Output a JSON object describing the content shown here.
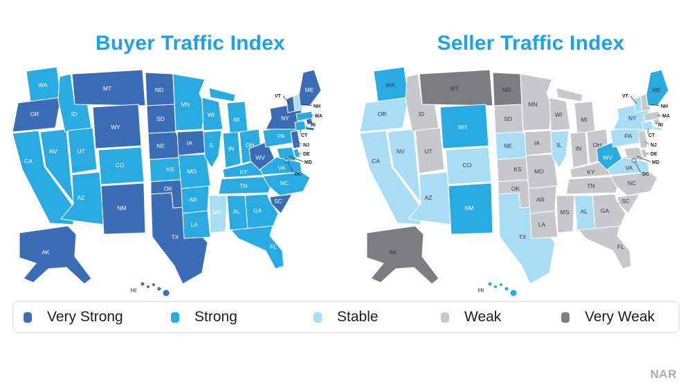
{
  "maps": {
    "buyer": {
      "title": "Buyer Traffic Index"
    },
    "seller": {
      "title": "Seller Traffic Index"
    }
  },
  "title_color": "#1BA3E8",
  "attribution": "NAR",
  "categories": {
    "very-strong": {
      "label": "Very Strong",
      "color": "#3A6DB5"
    },
    "strong": {
      "label": "Strong",
      "color": "#29ABE2"
    },
    "stable": {
      "label": "Stable",
      "color": "#A9DDF6"
    },
    "weak": {
      "label": "Weak",
      "color": "#C7C8CA"
    },
    "very-weak": {
      "label": "Very Weak",
      "color": "#7B7D80"
    }
  },
  "legend": {
    "items": [
      {
        "label": "Very Strong",
        "category": "very-strong"
      },
      {
        "label": "Strong",
        "category": "strong"
      },
      {
        "label": "Stable",
        "category": "stable"
      },
      {
        "label": "Weak",
        "category": "weak"
      },
      {
        "label": "Very Weak",
        "category": "very-weak"
      }
    ]
  },
  "states": [
    {
      "abbr": "AK",
      "buyer": "very-strong",
      "seller": "very-weak"
    },
    {
      "abbr": "AL",
      "buyer": "strong",
      "seller": "stable"
    },
    {
      "abbr": "AR",
      "buyer": "strong",
      "seller": "weak"
    },
    {
      "abbr": "AZ",
      "buyer": "strong",
      "seller": "stable"
    },
    {
      "abbr": "CA",
      "buyer": "strong",
      "seller": "stable"
    },
    {
      "abbr": "CO",
      "buyer": "strong",
      "seller": "stable"
    },
    {
      "abbr": "CT",
      "buyer": "strong",
      "seller": "stable"
    },
    {
      "abbr": "DC",
      "buyer": "strong",
      "seller": "weak"
    },
    {
      "abbr": "DE",
      "buyer": "strong",
      "seller": "weak"
    },
    {
      "abbr": "FL",
      "buyer": "strong",
      "seller": "weak"
    },
    {
      "abbr": "GA",
      "buyer": "strong",
      "seller": "weak"
    },
    {
      "abbr": "HI",
      "buyer": "very-strong",
      "seller": "strong"
    },
    {
      "abbr": "IA",
      "buyer": "very-strong",
      "seller": "weak"
    },
    {
      "abbr": "ID",
      "buyer": "strong",
      "seller": "weak"
    },
    {
      "abbr": "IL",
      "buyer": "strong",
      "seller": "stable"
    },
    {
      "abbr": "IN",
      "buyer": "strong",
      "seller": "weak"
    },
    {
      "abbr": "KS",
      "buyer": "strong",
      "seller": "weak"
    },
    {
      "abbr": "KY",
      "buyer": "strong",
      "seller": "weak"
    },
    {
      "abbr": "LA",
      "buyer": "strong",
      "seller": "weak"
    },
    {
      "abbr": "MA",
      "buyer": "strong",
      "seller": "weak"
    },
    {
      "abbr": "MD",
      "buyer": "strong",
      "seller": "weak"
    },
    {
      "abbr": "ME",
      "buyer": "very-strong",
      "seller": "strong"
    },
    {
      "abbr": "MI",
      "buyer": "strong",
      "seller": "weak"
    },
    {
      "abbr": "MN",
      "buyer": "strong",
      "seller": "weak"
    },
    {
      "abbr": "MO",
      "buyer": "strong",
      "seller": "weak"
    },
    {
      "abbr": "MS",
      "buyer": "stable",
      "seller": "weak"
    },
    {
      "abbr": "MT",
      "buyer": "very-strong",
      "seller": "very-weak"
    },
    {
      "abbr": "NC",
      "buyer": "strong",
      "seller": "weak"
    },
    {
      "abbr": "ND",
      "buyer": "very-strong",
      "seller": "very-weak"
    },
    {
      "abbr": "NE",
      "buyer": "very-strong",
      "seller": "stable"
    },
    {
      "abbr": "NH",
      "buyer": "stable",
      "seller": "weak"
    },
    {
      "abbr": "NJ",
      "buyer": "very-strong",
      "seller": "weak"
    },
    {
      "abbr": "NM",
      "buyer": "very-strong",
      "seller": "strong"
    },
    {
      "abbr": "NV",
      "buyer": "strong",
      "seller": "stable"
    },
    {
      "abbr": "NY",
      "buyer": "very-strong",
      "seller": "stable"
    },
    {
      "abbr": "OH",
      "buyer": "strong",
      "seller": "weak"
    },
    {
      "abbr": "OK",
      "buyer": "very-strong",
      "seller": "weak"
    },
    {
      "abbr": "OR",
      "buyer": "very-strong",
      "seller": "stable"
    },
    {
      "abbr": "PA",
      "buyer": "strong",
      "seller": "stable"
    },
    {
      "abbr": "RI",
      "buyer": "very-strong",
      "seller": "weak"
    },
    {
      "abbr": "SC",
      "buyer": "very-strong",
      "seller": "weak"
    },
    {
      "abbr": "SD",
      "buyer": "very-strong",
      "seller": "weak"
    },
    {
      "abbr": "TN",
      "buyer": "strong",
      "seller": "weak"
    },
    {
      "abbr": "TX",
      "buyer": "very-strong",
      "seller": "stable"
    },
    {
      "abbr": "UT",
      "buyer": "strong",
      "seller": "weak"
    },
    {
      "abbr": "VA",
      "buyer": "strong",
      "seller": "stable"
    },
    {
      "abbr": "VT",
      "buyer": "very-strong",
      "seller": "stable"
    },
    {
      "abbr": "WA",
      "buyer": "strong",
      "seller": "strong"
    },
    {
      "abbr": "WV",
      "buyer": "very-strong",
      "seller": "strong"
    },
    {
      "abbr": "WI",
      "buyer": "strong",
      "seller": "weak"
    },
    {
      "abbr": "WY",
      "buyer": "very-strong",
      "seller": "strong"
    }
  ]
}
